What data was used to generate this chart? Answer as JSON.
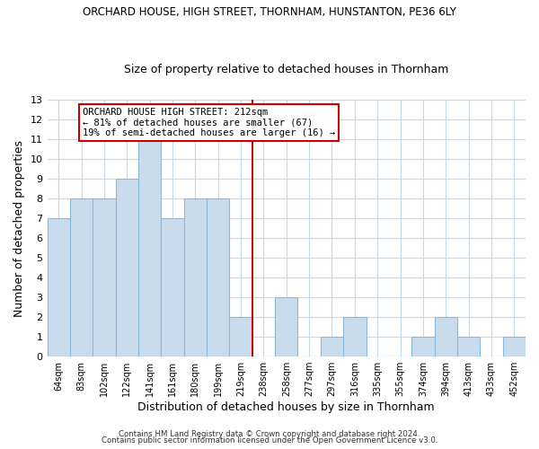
{
  "title": "ORCHARD HOUSE, HIGH STREET, THORNHAM, HUNSTANTON, PE36 6LY",
  "subtitle": "Size of property relative to detached houses in Thornham",
  "xlabel": "Distribution of detached houses by size in Thornham",
  "ylabel": "Number of detached properties",
  "footer_line1": "Contains HM Land Registry data © Crown copyright and database right 2024.",
  "footer_line2": "Contains public sector information licensed under the Open Government Licence v3.0.",
  "bar_labels": [
    "64sqm",
    "83sqm",
    "102sqm",
    "122sqm",
    "141sqm",
    "161sqm",
    "180sqm",
    "199sqm",
    "219sqm",
    "238sqm",
    "258sqm",
    "277sqm",
    "297sqm",
    "316sqm",
    "335sqm",
    "355sqm",
    "374sqm",
    "394sqm",
    "413sqm",
    "433sqm",
    "452sqm"
  ],
  "bar_values": [
    7,
    8,
    8,
    9,
    11,
    7,
    8,
    8,
    2,
    0,
    3,
    0,
    1,
    2,
    0,
    0,
    1,
    2,
    1,
    0,
    1
  ],
  "bar_color": "#c8dcee",
  "bar_edge_color": "#8ab8d8",
  "ylim": [
    0,
    13
  ],
  "yticks": [
    0,
    1,
    2,
    3,
    4,
    5,
    6,
    7,
    8,
    9,
    10,
    11,
    12,
    13
  ],
  "annotation_title": "ORCHARD HOUSE HIGH STREET: 212sqm",
  "annotation_line1": "← 81% of detached houses are smaller (67)",
  "annotation_line2": "19% of semi-detached houses are larger (16) →",
  "vline_position": 8.5,
  "vline_color": "#cc0000",
  "background_color": "#ffffff",
  "grid_color": "#c8d8ea"
}
